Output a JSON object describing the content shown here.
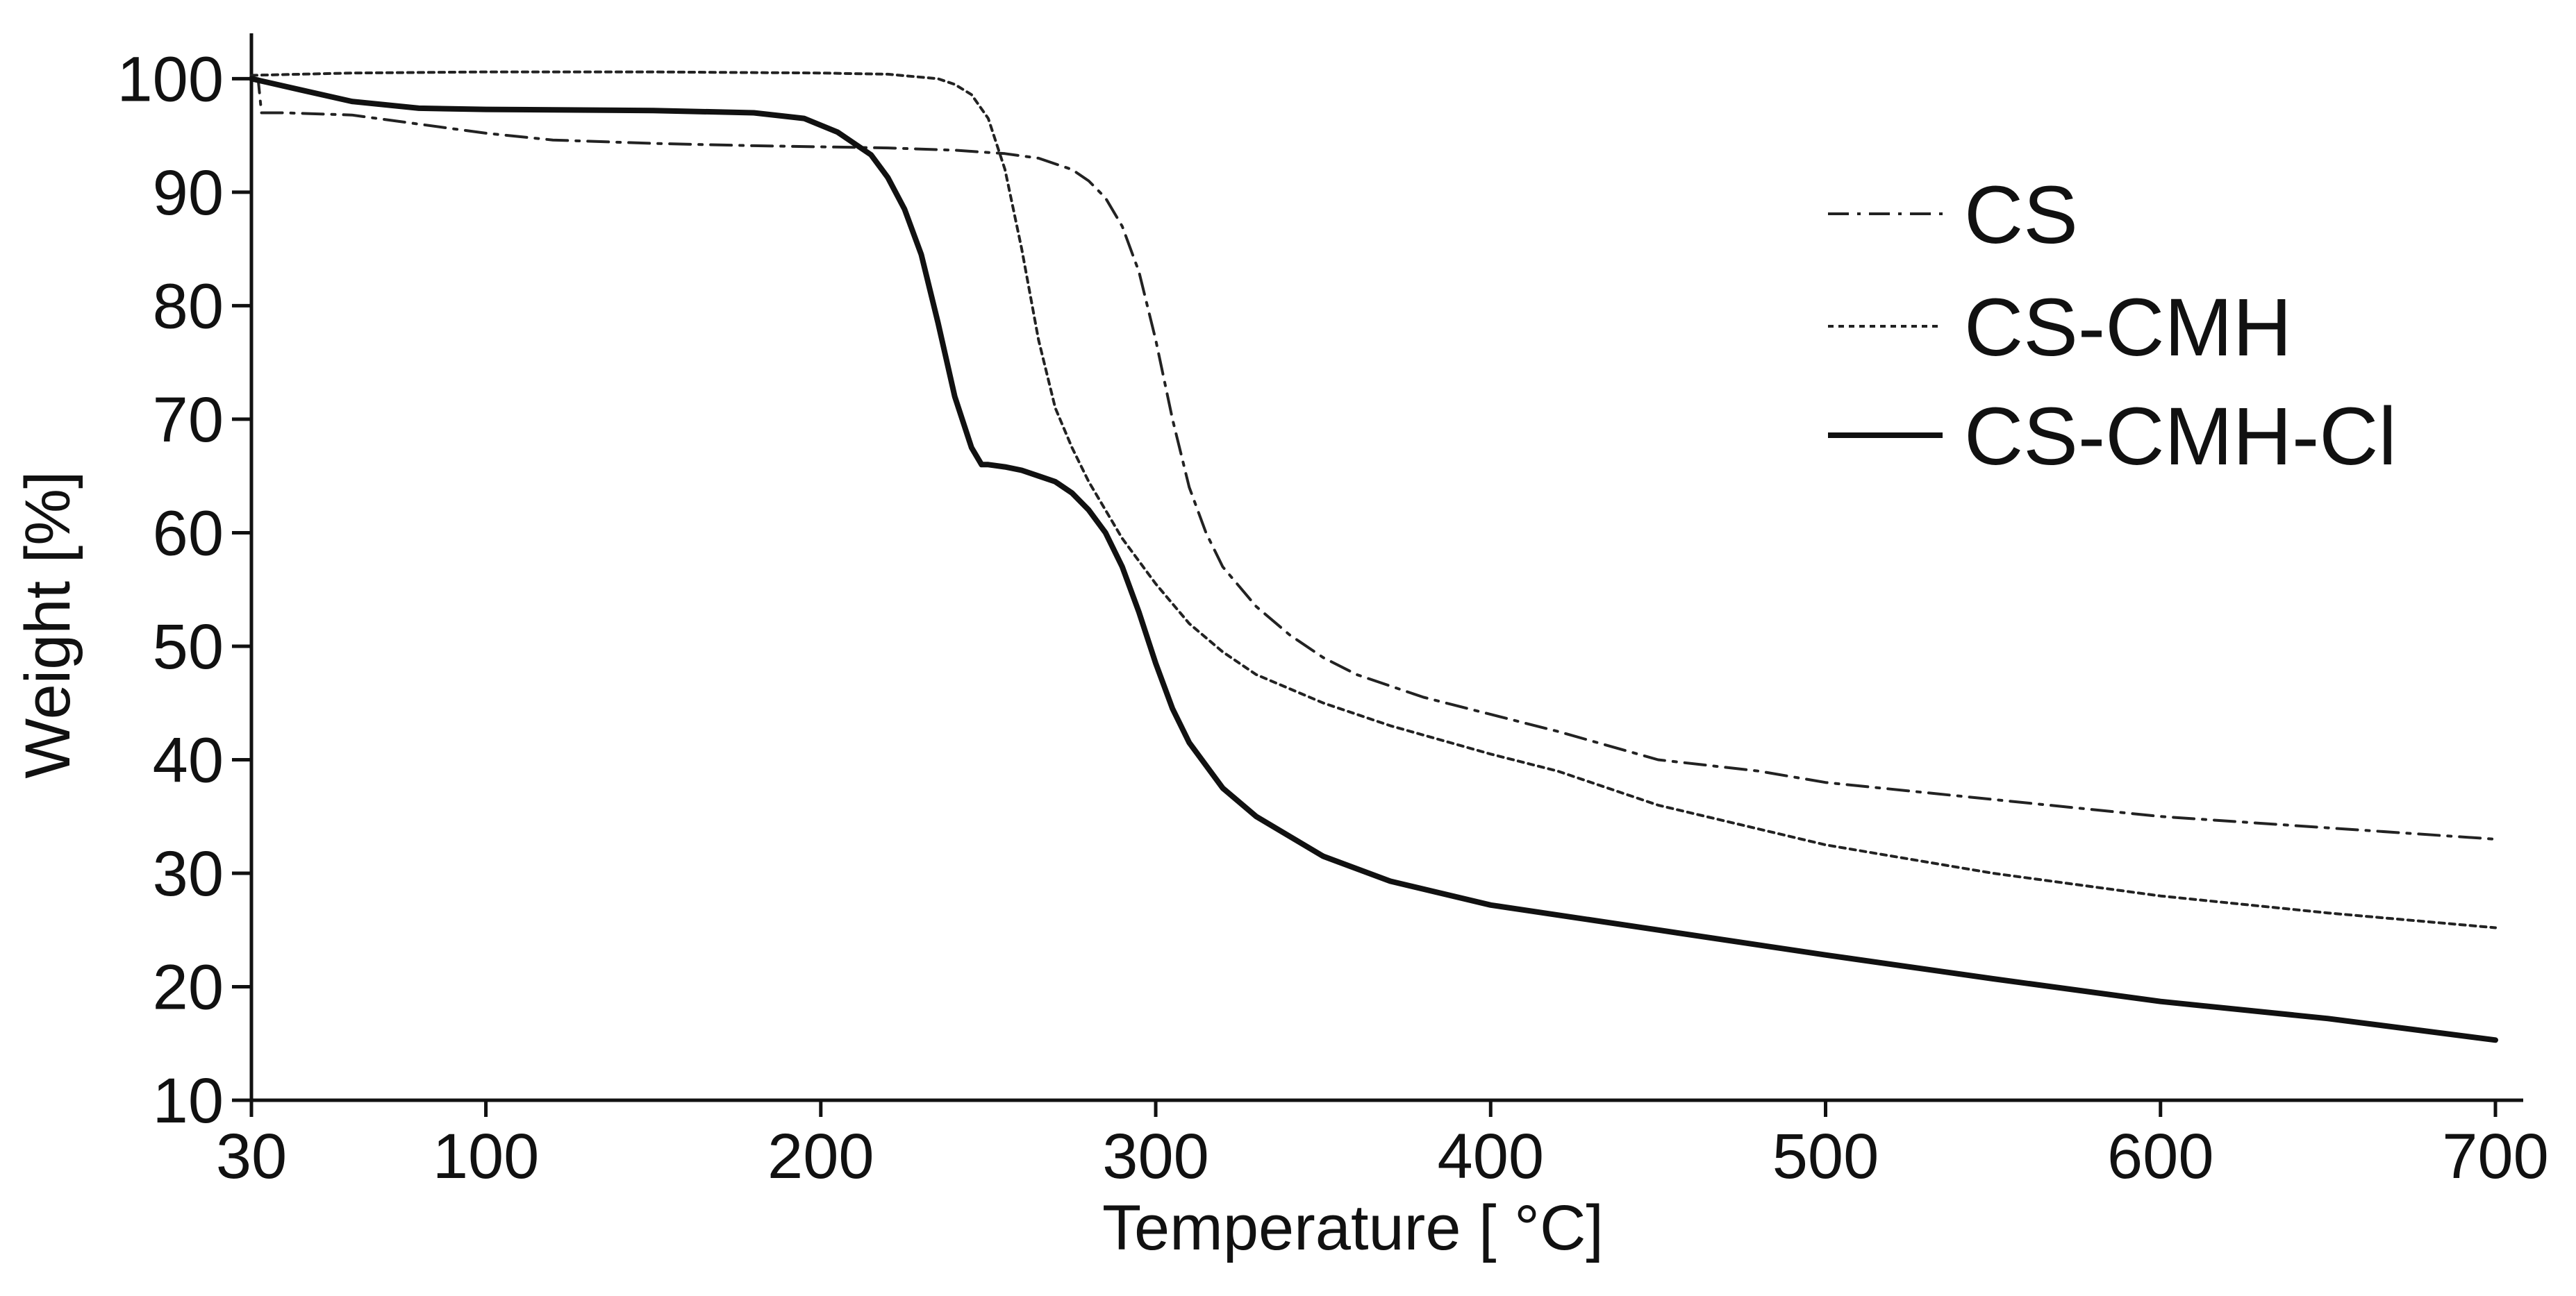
{
  "chart_data": {
    "type": "line",
    "title": "",
    "xlabel": "Temperature [ °C]",
    "ylabel": "Weight [%]",
    "xlim": [
      30,
      700
    ],
    "ylim": [
      10,
      104
    ],
    "x_ticks": [
      30,
      100,
      200,
      300,
      400,
      500,
      600,
      700
    ],
    "x_tick_labels": [
      "30",
      "100",
      "200",
      "300",
      "400",
      "500",
      "600",
      "700"
    ],
    "y_ticks": [
      10,
      20,
      30,
      40,
      50,
      60,
      70,
      80,
      90,
      100
    ],
    "y_tick_labels": [
      "10",
      "20",
      "30",
      "40",
      "50",
      "60",
      "70",
      "80",
      "90",
      "100"
    ],
    "grid": false,
    "legend_position": "top-right",
    "series": [
      {
        "name": "CS",
        "style": "dash-dot",
        "color": "#222222",
        "x": [
          30,
          32,
          33,
          40,
          60,
          80,
          100,
          120,
          150,
          180,
          200,
          220,
          240,
          255,
          265,
          275,
          280,
          285,
          290,
          295,
          300,
          305,
          310,
          315,
          320,
          330,
          340,
          350,
          360,
          380,
          400,
          420,
          450,
          480,
          500,
          550,
          600,
          650,
          700
        ],
        "y": [
          100,
          100,
          97,
          97,
          96.8,
          96,
          95.2,
          94.6,
          94.3,
          94.1,
          94,
          93.9,
          93.7,
          93.4,
          93,
          92,
          91,
          89.5,
          87,
          83,
          77,
          70,
          64,
          60,
          57,
          53.5,
          51,
          49,
          47.5,
          45.5,
          44,
          42.5,
          40,
          39,
          38,
          36.5,
          35,
          34,
          33
        ]
      },
      {
        "name": "CS-CMH",
        "style": "dotted",
        "color": "#222222",
        "x": [
          30,
          60,
          100,
          150,
          200,
          220,
          235,
          240,
          245,
          250,
          255,
          260,
          265,
          270,
          275,
          280,
          290,
          300,
          310,
          320,
          330,
          350,
          370,
          400,
          420,
          450,
          500,
          550,
          600,
          650,
          700
        ],
        "y": [
          100.3,
          100.5,
          100.6,
          100.6,
          100.5,
          100.4,
          100,
          99.5,
          98.6,
          96.5,
          92,
          85,
          77,
          71,
          67.5,
          64.5,
          59.5,
          55.5,
          52,
          49.5,
          47.5,
          45,
          43,
          40.5,
          39,
          36,
          32.5,
          30,
          28,
          26.5,
          25.2
        ]
      },
      {
        "name": "CS-CMH-Cl",
        "style": "solid",
        "color": "#111111",
        "x": [
          30,
          45,
          60,
          80,
          100,
          150,
          180,
          195,
          205,
          215,
          220,
          225,
          230,
          235,
          240,
          245,
          248,
          250,
          255,
          260,
          265,
          270,
          275,
          280,
          285,
          290,
          295,
          300,
          305,
          310,
          320,
          330,
          350,
          370,
          400,
          450,
          500,
          550,
          600,
          650,
          700
        ],
        "y": [
          100,
          99,
          98,
          97.4,
          97.3,
          97.2,
          97,
          96.5,
          95.3,
          93.3,
          91.3,
          88.5,
          84.5,
          78.5,
          72,
          67.5,
          66,
          66,
          65.8,
          65.5,
          65,
          64.5,
          63.5,
          62,
          60,
          57,
          53,
          48.5,
          44.5,
          41.5,
          37.5,
          35,
          31.5,
          29.3,
          27.2,
          25,
          22.8,
          20.7,
          18.7,
          17.2,
          15.3
        ]
      }
    ]
  }
}
